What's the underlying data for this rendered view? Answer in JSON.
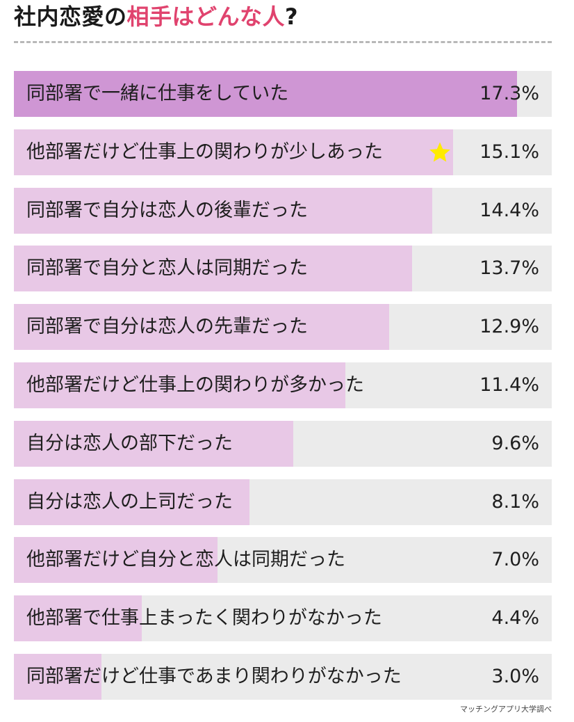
{
  "header": {
    "title_part1": "社内恋愛の",
    "title_part2": "相手はどんな人",
    "title_part3": "?"
  },
  "colors": {
    "accent": "#e0436e",
    "bar_fill": "#e8c8e6",
    "bar_fill_top": "#cf96d4",
    "track": "#ebebeb",
    "star": "#ffeb00"
  },
  "chart_data": {
    "type": "bar",
    "orientation": "horizontal",
    "xlim": [
      0,
      18.5
    ],
    "unit": "%",
    "categories": [
      "同部署で一緒に仕事をしていた",
      "他部署だけど仕事上の関わりが少しあった",
      "同部署で自分は恋人の後輩だった",
      "同部署で自分と恋人は同期だった",
      "同部署で自分は恋人の先輩だった",
      "他部署だけど仕事上の関わりが多かった",
      "自分は恋人の部下だった",
      "自分は恋人の上司だった",
      "他部署だけど自分と恋人は同期だった",
      "他部署で仕事上まったく関わりがなかった",
      "同部署だけど仕事であまり関わりがなかった"
    ],
    "values": [
      17.3,
      15.1,
      14.4,
      13.7,
      12.9,
      11.4,
      9.6,
      8.1,
      7.0,
      4.4,
      3.0
    ],
    "value_labels": [
      "17.3%",
      "15.1%",
      "14.4%",
      "13.7%",
      "12.9%",
      "11.4%",
      "9.6%",
      "8.1%",
      "7.0%",
      "4.4%",
      "3.0%"
    ],
    "highlighted_index": 0,
    "starred_index": 1
  },
  "footer": {
    "source": "マッチングアプリ大学調べ"
  }
}
